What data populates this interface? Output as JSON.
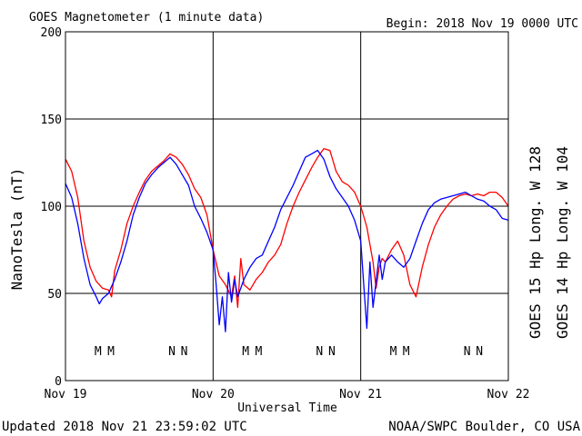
{
  "title": "GOES Magnetometer (1 minute data)",
  "begin": "Begin:  2018 Nov 19 0000 UTC",
  "updated": "Updated 2018 Nov 21 23:59:02 UTC",
  "credit": "NOAA/SWPC Boulder, CO USA",
  "colors": {
    "goes15": "#ff0000",
    "goes14": "#0000ff",
    "grid": "#000000"
  },
  "chart_data": {
    "type": "line",
    "xlabel": "Universal Time",
    "ylabel": "NanoTesla (nT)",
    "ylim": [
      0,
      200
    ],
    "xlim": [
      0,
      72
    ],
    "grid": true,
    "y_ticks": [
      "0",
      "50",
      "100",
      "150",
      "200"
    ],
    "x_tick_labels": [
      "Nov 19",
      "Nov 20",
      "Nov 21",
      "Nov 22"
    ],
    "x_ticks_hours": [
      0,
      24,
      48,
      72
    ],
    "x_unit": "hours since 2018 Nov 19 0000 UTC",
    "legend": {
      "placement": "right-vertical"
    },
    "markers": [
      {
        "label": "M",
        "hour": 5.3,
        "series": "GOES 14"
      },
      {
        "label": "M",
        "hour": 7.4,
        "series": "GOES 15"
      },
      {
        "label": "N",
        "hour": 17.3,
        "series": "GOES 14"
      },
      {
        "label": "N",
        "hour": 19.3,
        "series": "GOES 15"
      },
      {
        "label": "M",
        "hour": 29.3,
        "series": "GOES 14"
      },
      {
        "label": "M",
        "hour": 31.4,
        "series": "GOES 15"
      },
      {
        "label": "N",
        "hour": 41.3,
        "series": "GOES 14"
      },
      {
        "label": "N",
        "hour": 43.3,
        "series": "GOES 15"
      },
      {
        "label": "M",
        "hour": 53.3,
        "series": "GOES 14"
      },
      {
        "label": "M",
        "hour": 55.4,
        "series": "GOES 15"
      },
      {
        "label": "N",
        "hour": 65.3,
        "series": "GOES 14"
      },
      {
        "label": "N",
        "hour": 67.3,
        "series": "GOES 15"
      }
    ],
    "series": [
      {
        "name": "GOES 15 Hp  Long. W 128",
        "color": "#ff0000",
        "x": [
          0,
          1,
          2,
          3,
          4,
          5,
          6,
          7,
          7.5,
          8,
          9,
          10,
          11,
          12,
          13,
          14,
          15,
          16,
          17,
          18,
          19,
          20,
          21,
          22,
          23,
          24,
          25,
          26,
          27,
          27.5,
          28,
          28.5,
          29,
          30,
          31,
          32,
          33,
          34,
          35,
          36,
          37,
          38,
          39,
          40,
          41,
          42,
          43,
          44,
          45,
          46,
          47,
          48,
          49,
          50,
          50.5,
          51,
          51.5,
          52,
          53,
          54,
          55,
          56,
          57,
          58,
          59,
          60,
          61,
          62,
          63,
          64,
          65,
          66,
          67,
          68,
          69,
          70,
          71,
          72
        ],
        "y": [
          127,
          120,
          105,
          80,
          65,
          57,
          53,
          52,
          48,
          63,
          75,
          90,
          100,
          108,
          115,
          120,
          123,
          126,
          130,
          128,
          124,
          118,
          110,
          105,
          95,
          75,
          60,
          55,
          48,
          60,
          42,
          70,
          55,
          52,
          58,
          62,
          68,
          72,
          78,
          90,
          100,
          108,
          115,
          122,
          128,
          133,
          132,
          120,
          114,
          112,
          108,
          100,
          88,
          68,
          53,
          65,
          70,
          68,
          75,
          80,
          72,
          55,
          48,
          65,
          78,
          88,
          95,
          100,
          104,
          106,
          107,
          106,
          107,
          106,
          108,
          108,
          105,
          100
        ]
      },
      {
        "name": "GOES 14 Hp  Long. W 104",
        "color": "#0000ff",
        "x": [
          0,
          1,
          2,
          3,
          4,
          5,
          5.5,
          6,
          7,
          8,
          9,
          10,
          11,
          12,
          13,
          14,
          15,
          16,
          17,
          18,
          19,
          20,
          21,
          22,
          23,
          24,
          24.5,
          25,
          25.5,
          26,
          26.5,
          27,
          27.5,
          28,
          29,
          30,
          31,
          32,
          33,
          34,
          35,
          36,
          37,
          38,
          39,
          40,
          41,
          42,
          43,
          44,
          45,
          46,
          47,
          48,
          48.5,
          49,
          49.5,
          50,
          51,
          51.5,
          52,
          53,
          54,
          55,
          56,
          57,
          58,
          59,
          60,
          61,
          62,
          63,
          64,
          65,
          66,
          67,
          68,
          69,
          70,
          71,
          72
        ],
        "y": [
          113,
          105,
          90,
          70,
          55,
          48,
          44,
          47,
          50,
          58,
          68,
          80,
          95,
          105,
          113,
          118,
          122,
          125,
          128,
          124,
          118,
          112,
          100,
          93,
          85,
          75,
          55,
          32,
          48,
          28,
          62,
          45,
          58,
          48,
          58,
          65,
          70,
          72,
          80,
          88,
          98,
          105,
          112,
          120,
          128,
          130,
          132,
          127,
          117,
          110,
          105,
          100,
          92,
          80,
          55,
          30,
          68,
          42,
          72,
          58,
          68,
          72,
          68,
          65,
          70,
          80,
          90,
          98,
          102,
          104,
          105,
          106,
          107,
          108,
          106,
          104,
          103,
          100,
          98,
          93,
          92
        ]
      }
    ]
  }
}
